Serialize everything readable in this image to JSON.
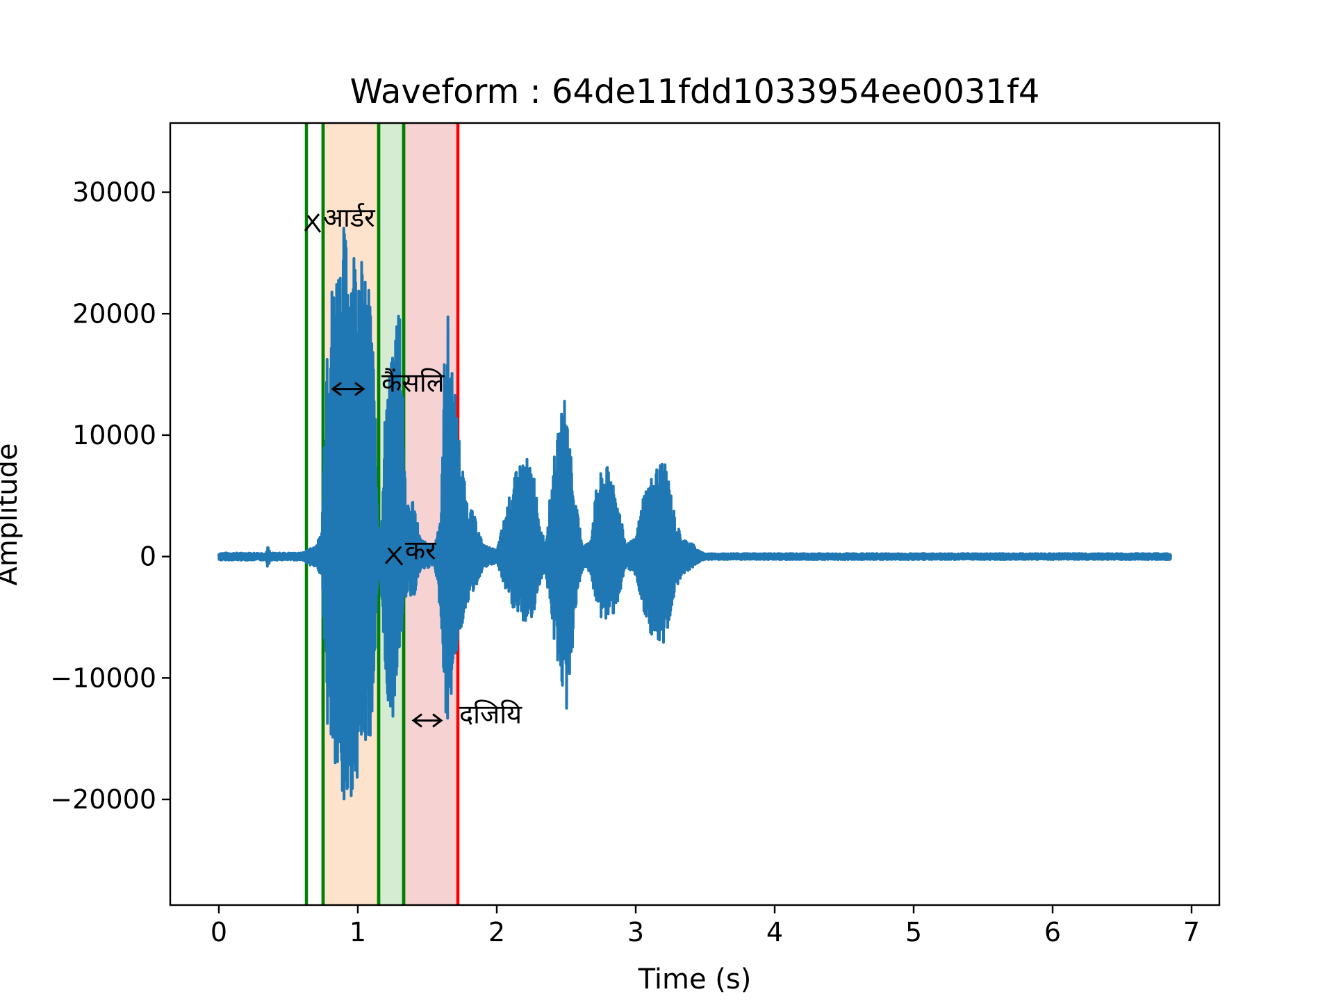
{
  "chart_data": {
    "type": "line",
    "title": "Waveform : 64de11fdd1033954ee0031f4",
    "xlabel": "Time (s)",
    "ylabel": "Amplitude",
    "xlim": [
      -0.35,
      7.2
    ],
    "ylim": [
      -28700,
      35700
    ],
    "xticks": [
      0,
      1,
      2,
      3,
      4,
      5,
      6,
      7
    ],
    "xtick_labels": [
      "0",
      "1",
      "2",
      "3",
      "4",
      "5",
      "6",
      "7"
    ],
    "yticks": [
      -20000,
      -10000,
      0,
      10000,
      20000,
      30000
    ],
    "ytick_labels": [
      "−20000",
      "−10000",
      "0",
      "10000",
      "20000",
      "30000"
    ],
    "grid": false,
    "series": [
      {
        "color": "#1f77b4",
        "duration": 6.85,
        "envelope": [
          [
            0.0,
            300,
            -300
          ],
          [
            0.34,
            300,
            -300
          ],
          [
            0.35,
            900,
            -900
          ],
          [
            0.37,
            300,
            -300
          ],
          [
            0.6,
            300,
            -300
          ],
          [
            0.7,
            1000,
            -1000
          ],
          [
            0.74,
            2000,
            -1500
          ],
          [
            0.78,
            21000,
            -14000
          ],
          [
            0.85,
            25000,
            -19000
          ],
          [
            0.9,
            27500,
            -22000
          ],
          [
            0.95,
            26000,
            -20000
          ],
          [
            1.0,
            27000,
            -18000
          ],
          [
            1.05,
            23000,
            -16000
          ],
          [
            1.1,
            22000,
            -14500
          ],
          [
            1.15,
            1500,
            -1500
          ],
          [
            1.18,
            5000,
            -5000
          ],
          [
            1.2,
            14000,
            -12000
          ],
          [
            1.25,
            16500,
            -13500
          ],
          [
            1.3,
            23500,
            -8000
          ],
          [
            1.35,
            4000,
            -3000
          ],
          [
            1.4,
            5000,
            -3500
          ],
          [
            1.45,
            1500,
            -1200
          ],
          [
            1.55,
            700,
            -700
          ],
          [
            1.6,
            4000,
            -5000
          ],
          [
            1.63,
            20500,
            -13500
          ],
          [
            1.65,
            20000,
            -14000
          ],
          [
            1.7,
            13500,
            -8500
          ],
          [
            1.73,
            10000,
            -7000
          ],
          [
            1.78,
            5000,
            -4000
          ],
          [
            1.85,
            3000,
            -2500
          ],
          [
            1.9,
            1000,
            -1000
          ],
          [
            2.0,
            500,
            -500
          ],
          [
            2.08,
            4500,
            -3500
          ],
          [
            2.15,
            7500,
            -5000
          ],
          [
            2.2,
            8500,
            -5500
          ],
          [
            2.27,
            7000,
            -5000
          ],
          [
            2.3,
            3000,
            -2500
          ],
          [
            2.35,
            1200,
            -1200
          ],
          [
            2.41,
            8000,
            -7000
          ],
          [
            2.46,
            11500,
            -10000
          ],
          [
            2.49,
            13500,
            -13500
          ],
          [
            2.52,
            11000,
            -12000
          ],
          [
            2.56,
            5000,
            -5000
          ],
          [
            2.62,
            1000,
            -1000
          ],
          [
            2.67,
            1200,
            -1200
          ],
          [
            2.72,
            6000,
            -4500
          ],
          [
            2.77,
            7500,
            -5500
          ],
          [
            2.83,
            7200,
            -5000
          ],
          [
            2.88,
            4000,
            -3500
          ],
          [
            2.93,
            1000,
            -1000
          ],
          [
            3.0,
            1500,
            -1500
          ],
          [
            3.06,
            5500,
            -5000
          ],
          [
            3.13,
            7000,
            -7000
          ],
          [
            3.19,
            8200,
            -8000
          ],
          [
            3.23,
            7000,
            -6000
          ],
          [
            3.28,
            3500,
            -3000
          ],
          [
            3.33,
            1500,
            -1500
          ],
          [
            3.4,
            1200,
            -1000
          ],
          [
            3.45,
            500,
            -500
          ],
          [
            3.5,
            250,
            -250
          ],
          [
            6.85,
            250,
            -250
          ]
        ]
      }
    ],
    "segments": [
      {
        "start": 0.63,
        "end": 0.75,
        "fill": null,
        "edge": "#008000"
      },
      {
        "start": 0.75,
        "end": 1.15,
        "fill": "#fde3cb",
        "edge": "#008000"
      },
      {
        "start": 1.15,
        "end": 1.33,
        "fill": "#d6ecd2",
        "edge": "#008000"
      },
      {
        "start": 1.33,
        "end": 1.72,
        "fill": "#f6d2d3",
        "edge": "#ff0000"
      }
    ],
    "annotations": [
      {
        "text": "आर्डर",
        "x": 0.74,
        "y": 27400,
        "arrow": "x-mark",
        "arrow_x": 0.64
      },
      {
        "text": "कैंसलि",
        "x": 1.16,
        "y": 13800,
        "arrow": "double",
        "arrow_x": 0.8
      },
      {
        "text": "कर",
        "x": 1.33,
        "y": 0,
        "arrow": "x-mark",
        "arrow_x": 1.22
      },
      {
        "text": "दजियि",
        "x": 1.72,
        "y": -13500,
        "arrow": "double",
        "arrow_x": 1.38
      }
    ]
  }
}
